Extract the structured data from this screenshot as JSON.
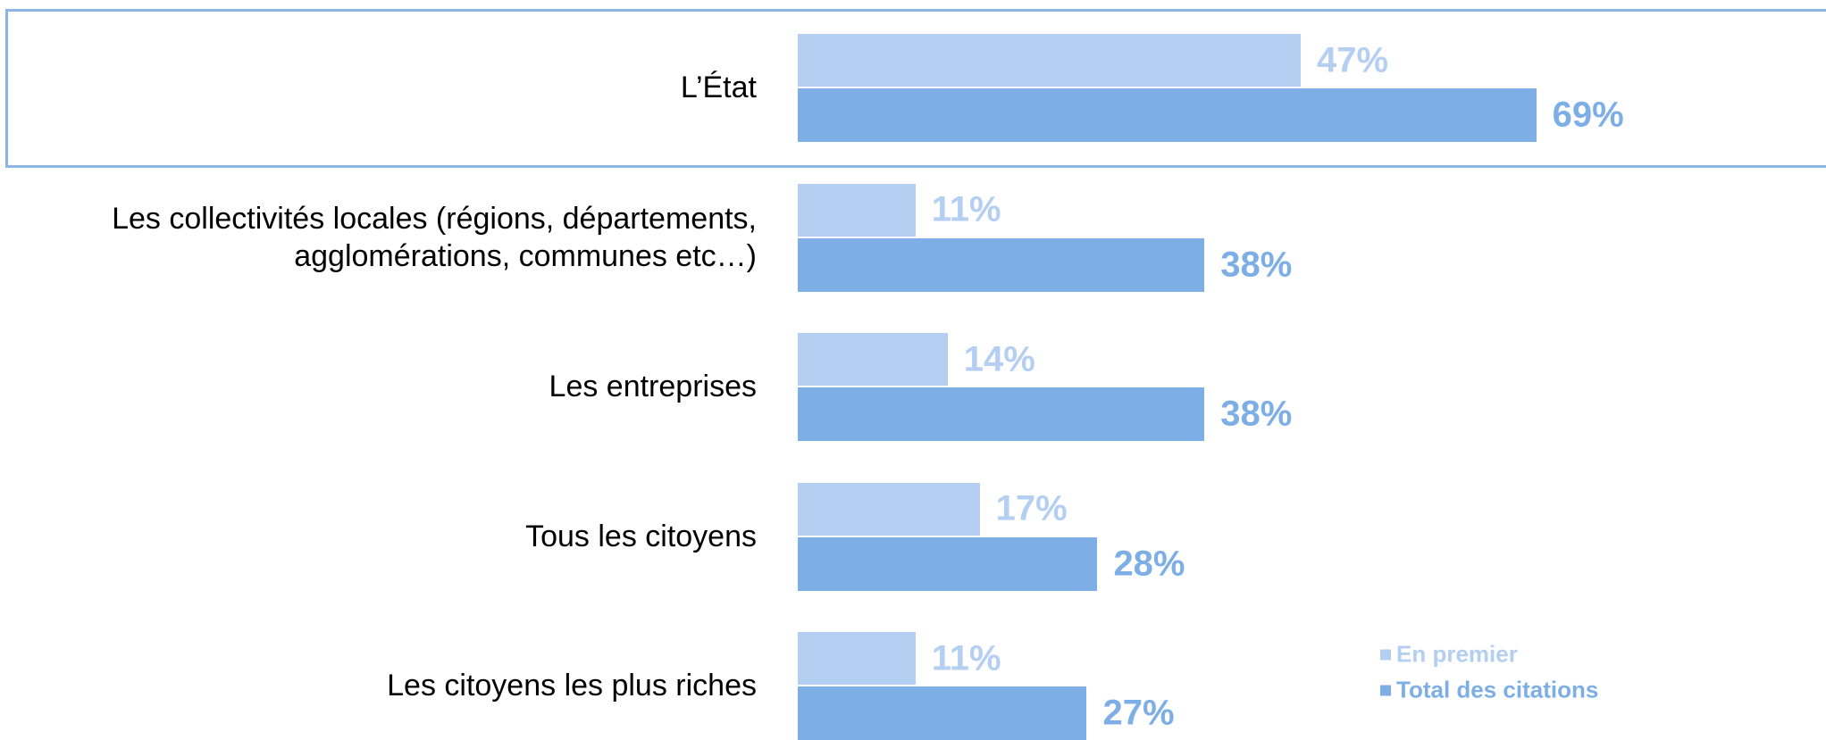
{
  "chart_data": {
    "type": "bar",
    "orientation": "horizontal",
    "categories": [
      "L’État",
      "Les collectivités locales (régions, départements, agglomérations, communes etc…)",
      "Les entreprises",
      "Tous les citoyens",
      "Les citoyens les plus riches"
    ],
    "series": [
      {
        "name": "En premier",
        "color": "#b4cff2",
        "values": [
          47,
          11,
          14,
          17,
          11
        ],
        "value_labels": [
          "47%",
          "11%",
          "14%",
          "17%",
          "11%"
        ]
      },
      {
        "name": "Total des citations",
        "color": "#7daee6",
        "values": [
          69,
          38,
          38,
          28,
          27
        ],
        "value_labels": [
          "69%",
          "38%",
          "38%",
          "28%",
          "27%"
        ]
      }
    ],
    "xlim": [
      0,
      100
    ],
    "legend": "lower right"
  }
}
